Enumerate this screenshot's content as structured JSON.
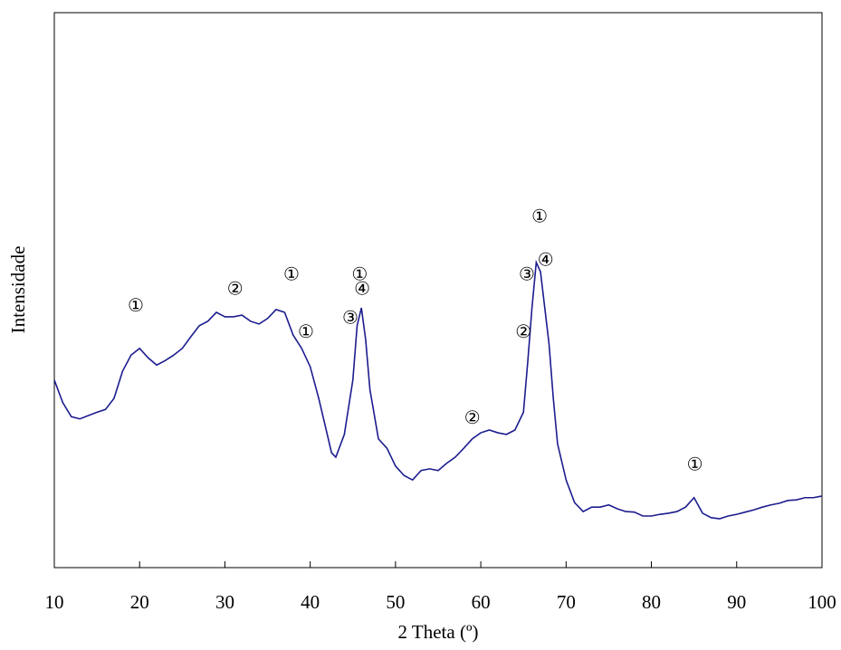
{
  "chart_data": {
    "type": "line",
    "xlabel": "2 Theta (º)",
    "ylabel": "Intensidade",
    "xlim": [
      10,
      100
    ],
    "xticks": [
      10,
      20,
      30,
      40,
      50,
      60,
      70,
      80,
      90,
      100
    ],
    "ylim": [
      0,
      100
    ],
    "series": [
      {
        "color": "#1c1c8f",
        "x": [
          10,
          11,
          12,
          13,
          14,
          15,
          16,
          17,
          18,
          19,
          20,
          21,
          22,
          23,
          24,
          25,
          26,
          27,
          28,
          29,
          30,
          31,
          32,
          33,
          34,
          35,
          36,
          37,
          38,
          39,
          40,
          41,
          42,
          42.5,
          43,
          44,
          45,
          45.5,
          46,
          46.5,
          47,
          48,
          49,
          50,
          51,
          52,
          53,
          54,
          55,
          56,
          57,
          58,
          59,
          60,
          61,
          62,
          63,
          64,
          65,
          65.5,
          66,
          66.5,
          67,
          67.5,
          68,
          68.5,
          69,
          70,
          71,
          72,
          73,
          74,
          75,
          76,
          77,
          78,
          79,
          80,
          81,
          82,
          83,
          84,
          85,
          86,
          87,
          88,
          89,
          90,
          91,
          92,
          93,
          94,
          95,
          96,
          97,
          98,
          99,
          100
        ],
        "values": [
          33.8,
          29.7,
          27.2,
          26.8,
          27.4,
          28,
          28.5,
          30.5,
          35.4,
          38.3,
          39.5,
          37.8,
          36.5,
          37.3,
          38.3,
          39.5,
          41.6,
          43.6,
          44.4,
          46,
          45.2,
          45.2,
          45.5,
          44.4,
          43.9,
          44.9,
          46.5,
          46,
          41.9,
          39.5,
          36.2,
          30.5,
          24,
          20.7,
          19.9,
          24,
          33.8,
          43.6,
          46.8,
          41.1,
          32.1,
          23.2,
          21.5,
          18.3,
          16.6,
          15.8,
          17.5,
          17.8,
          17.5,
          18.8,
          19.9,
          21.5,
          23.2,
          24.3,
          24.8,
          24.3,
          24,
          24.8,
          28,
          37,
          46.8,
          55,
          53.3,
          46.8,
          40.3,
          30.5,
          22.3,
          15.8,
          11.7,
          10.1,
          10.9,
          10.9,
          11.3,
          10.6,
          10.1,
          10,
          9.3,
          9.3,
          9.6,
          9.8,
          10.1,
          10.9,
          12.6,
          9.8,
          9,
          8.8,
          9.3,
          9.6,
          10,
          10.4,
          10.9,
          11.3,
          11.6,
          12.1,
          12.2,
          12.6,
          12.6,
          12.9
        ]
      }
    ],
    "annotations": [
      {
        "text": "①",
        "x": 19.55,
        "y": 47.1
      },
      {
        "text": "②",
        "x": 31.2,
        "y": 50.1
      },
      {
        "text": "①",
        "x": 37.8,
        "y": 52.7
      },
      {
        "text": "①",
        "x": 39.5,
        "y": 42.3
      },
      {
        "text": "①",
        "x": 45.8,
        "y": 52.7
      },
      {
        "text": "④",
        "x": 46.1,
        "y": 50.1
      },
      {
        "text": "③",
        "x": 44.7,
        "y": 44.9
      },
      {
        "text": "②",
        "x": 59.0,
        "y": 26.8
      },
      {
        "text": "①",
        "x": 66.9,
        "y": 63.1
      },
      {
        "text": "③",
        "x": 65.4,
        "y": 52.7
      },
      {
        "text": "④",
        "x": 67.6,
        "y": 55.3
      },
      {
        "text": "②",
        "x": 65.0,
        "y": 42.3
      },
      {
        "text": "①",
        "x": 85.1,
        "y": 18.4
      }
    ]
  }
}
